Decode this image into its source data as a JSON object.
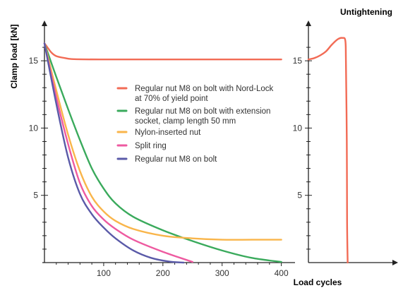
{
  "chart_data": [
    {
      "type": "line",
      "title": "",
      "xlabel": "Load cycles",
      "ylabel": "Clamp load [kN]",
      "xlim": [
        0,
        410
      ],
      "ylim": [
        0,
        17
      ],
      "xticks": [
        100,
        200,
        300,
        400
      ],
      "yticks": [
        5,
        10,
        15
      ],
      "grid": false,
      "legend_position": "center-right",
      "series": [
        {
          "name": "Regular nut M8 on bolt with Nord-Lock at 70% of yield point",
          "color": "#f26b55",
          "x": [
            0,
            5,
            12,
            20,
            35,
            50,
            100,
            200,
            300,
            400
          ],
          "y": [
            16.3,
            16.0,
            15.6,
            15.35,
            15.2,
            15.12,
            15.1,
            15.1,
            15.1,
            15.1
          ]
        },
        {
          "name": "Regular nut M8 on bolt with extension socket, clamp length 50 mm",
          "color": "#3aaa5c",
          "x": [
            0,
            20,
            40,
            60,
            80,
            100,
            120,
            150,
            200,
            250,
            300,
            350,
            400
          ],
          "y": [
            16.3,
            13.8,
            11.4,
            9.1,
            7.0,
            5.5,
            4.4,
            3.4,
            2.4,
            1.6,
            0.9,
            0.35,
            0.05
          ]
        },
        {
          "name": "Nylon-inserted nut",
          "color": "#f9b54a",
          "x": [
            0,
            20,
            40,
            60,
            80,
            100,
            120,
            150,
            200,
            250,
            300,
            350,
            400
          ],
          "y": [
            16.3,
            12.8,
            9.5,
            6.8,
            4.9,
            3.8,
            3.1,
            2.5,
            2.0,
            1.8,
            1.7,
            1.7,
            1.7
          ]
        },
        {
          "name": "Split ring",
          "color": "#ee5aa0",
          "x": [
            0,
            20,
            40,
            60,
            80,
            100,
            120,
            150,
            200,
            250
          ],
          "y": [
            16.3,
            12.3,
            8.8,
            5.9,
            4.2,
            3.2,
            2.5,
            1.7,
            0.8,
            0.05
          ]
        },
        {
          "name": "Regular nut M8 on bolt",
          "color": "#5a5aa8",
          "x": [
            0,
            20,
            40,
            60,
            80,
            100,
            120,
            150,
            180,
            210,
            235
          ],
          "y": [
            16.3,
            11.8,
            7.8,
            5.1,
            3.6,
            2.6,
            1.8,
            0.9,
            0.35,
            0.08,
            0.0
          ]
        }
      ]
    },
    {
      "type": "line",
      "title": "Untightening",
      "xlabel": "",
      "ylabel": "",
      "xlim": [
        0,
        1
      ],
      "ylim": [
        0,
        17
      ],
      "yticks": [
        5,
        10,
        15
      ],
      "grid": false,
      "series": [
        {
          "color": "#f26b55",
          "x": [
            0,
            0.1,
            0.2,
            0.3,
            0.4,
            0.5,
            0.58,
            0.63,
            0.64,
            0.655,
            0.66,
            0.67
          ],
          "y": [
            15.1,
            15.2,
            15.4,
            15.7,
            16.2,
            16.6,
            16.7,
            16.5,
            15.0,
            9.0,
            3.0,
            0.0
          ]
        }
      ]
    }
  ]
}
